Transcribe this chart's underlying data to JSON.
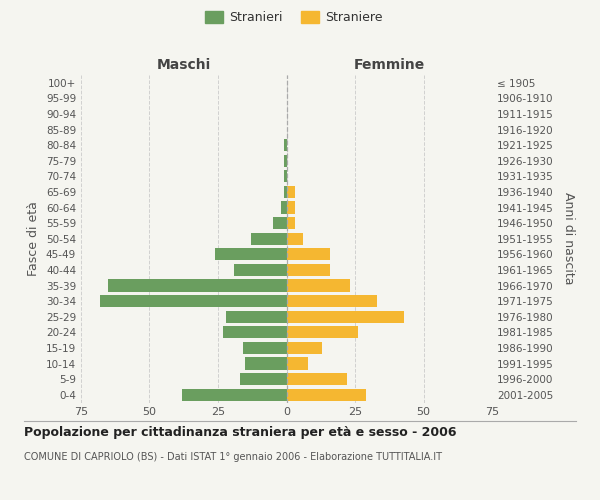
{
  "age_groups_bottom_to_top": [
    "0-4",
    "5-9",
    "10-14",
    "15-19",
    "20-24",
    "25-29",
    "30-34",
    "35-39",
    "40-44",
    "45-49",
    "50-54",
    "55-59",
    "60-64",
    "65-69",
    "70-74",
    "75-79",
    "80-84",
    "85-89",
    "90-94",
    "95-99",
    "100+"
  ],
  "birth_years_bottom_to_top": [
    "2001-2005",
    "1996-2000",
    "1991-1995",
    "1986-1990",
    "1981-1985",
    "1976-1980",
    "1971-1975",
    "1966-1970",
    "1961-1965",
    "1956-1960",
    "1951-1955",
    "1946-1950",
    "1941-1945",
    "1936-1940",
    "1931-1935",
    "1926-1930",
    "1921-1925",
    "1916-1920",
    "1911-1915",
    "1906-1910",
    "≤ 1905"
  ],
  "males_bottom_to_top": [
    38,
    17,
    15,
    16,
    23,
    22,
    68,
    65,
    19,
    26,
    13,
    5,
    2,
    1,
    1,
    1,
    1,
    0,
    0,
    0,
    0
  ],
  "females_bottom_to_top": [
    29,
    22,
    8,
    13,
    26,
    43,
    33,
    23,
    16,
    16,
    6,
    3,
    3,
    3,
    0,
    0,
    0,
    0,
    0,
    0,
    0
  ],
  "male_color": "#6a9e5f",
  "female_color": "#f5b731",
  "background_color": "#f5f5f0",
  "grid_color": "#cccccc",
  "title": "Popolazione per cittadinanza straniera per età e sesso - 2006",
  "subtitle": "COMUNE DI CAPRIOLO (BS) - Dati ISTAT 1° gennaio 2006 - Elaborazione TUTTITALIA.IT",
  "xlabel_left": "Maschi",
  "xlabel_right": "Femmine",
  "ylabel_left": "Fasce di età",
  "ylabel_right": "Anni di nascita",
  "legend_male": "Stranieri",
  "legend_female": "Straniere",
  "xlim": 75
}
